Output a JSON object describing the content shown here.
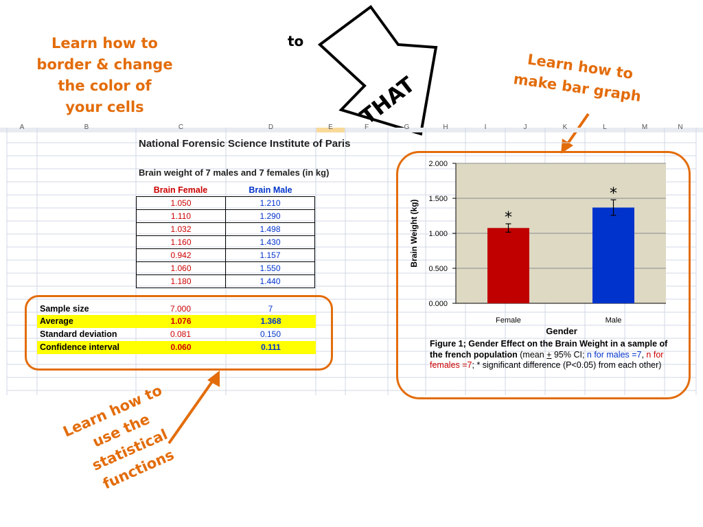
{
  "callouts": {
    "border": [
      "Learn how to",
      "border & change",
      "the color of",
      "your cells"
    ],
    "bar_graph": [
      "Learn how to",
      "make bar graph"
    ],
    "stats": [
      "Learn how to",
      "use the",
      "statistical",
      "functions"
    ]
  },
  "to_label": "to",
  "arrow_label": "THAT",
  "sheet": {
    "column_letters": [
      "A",
      "B",
      "C",
      "D",
      "E",
      "F",
      "G",
      "H",
      "I",
      "J",
      "K",
      "L",
      "M",
      "N"
    ],
    "title": "National Forensic Science Institute of Paris",
    "subtitle": "Brain weight of 7 males and 7 females (in kg)",
    "headers": [
      "Brain Female",
      "Brain Male"
    ],
    "rows": [
      [
        "1.050",
        "1.210"
      ],
      [
        "1.110",
        "1.290"
      ],
      [
        "1.032",
        "1.498"
      ],
      [
        "1.160",
        "1.430"
      ],
      [
        "0.942",
        "1.157"
      ],
      [
        "1.060",
        "1.550"
      ],
      [
        "1.180",
        "1.440"
      ]
    ],
    "stats": [
      {
        "label": "Sample size",
        "female": "7.000",
        "male": "7"
      },
      {
        "label": "Average",
        "female": "1.076",
        "male": "1.368"
      },
      {
        "label": "Standard deviation",
        "female": "0.081",
        "male": "0.150"
      },
      {
        "label": "Confidence interval",
        "female": "0.060",
        "male": "0.111"
      }
    ]
  },
  "colors": {
    "accent_orange": "#e36c0a",
    "female_red": "#c00000",
    "male_blue": "#0033cc",
    "highlight_yellow": "#ffff00",
    "plot_bg": "#ddd9c3"
  },
  "chart_data": {
    "type": "bar",
    "categories": [
      "Female",
      "Male"
    ],
    "values": [
      1.076,
      1.368
    ],
    "errors": [
      0.06,
      0.111
    ],
    "bar_colors": [
      "#c00000",
      "#0033cc"
    ],
    "significance_marks": [
      "*",
      "*"
    ],
    "xlabel": "Gender",
    "ylabel": "Brain Weight (kg)",
    "ylim": [
      0,
      2
    ],
    "yticks": [
      "0.000",
      "0.500",
      "1.000",
      "1.500",
      "2.000"
    ],
    "grid": true,
    "caption": {
      "bold": "Figure 1; Gender Effect on the Brain Weight in a sample of the french population",
      "part1": " (mean ",
      "pm": "+",
      "part2": " 95% CI; ",
      "males": "n for males  =7",
      "sep": ", ",
      "females": "n for females  =7",
      "part3": "; * significant difference (P<0.05) from each other)"
    }
  }
}
